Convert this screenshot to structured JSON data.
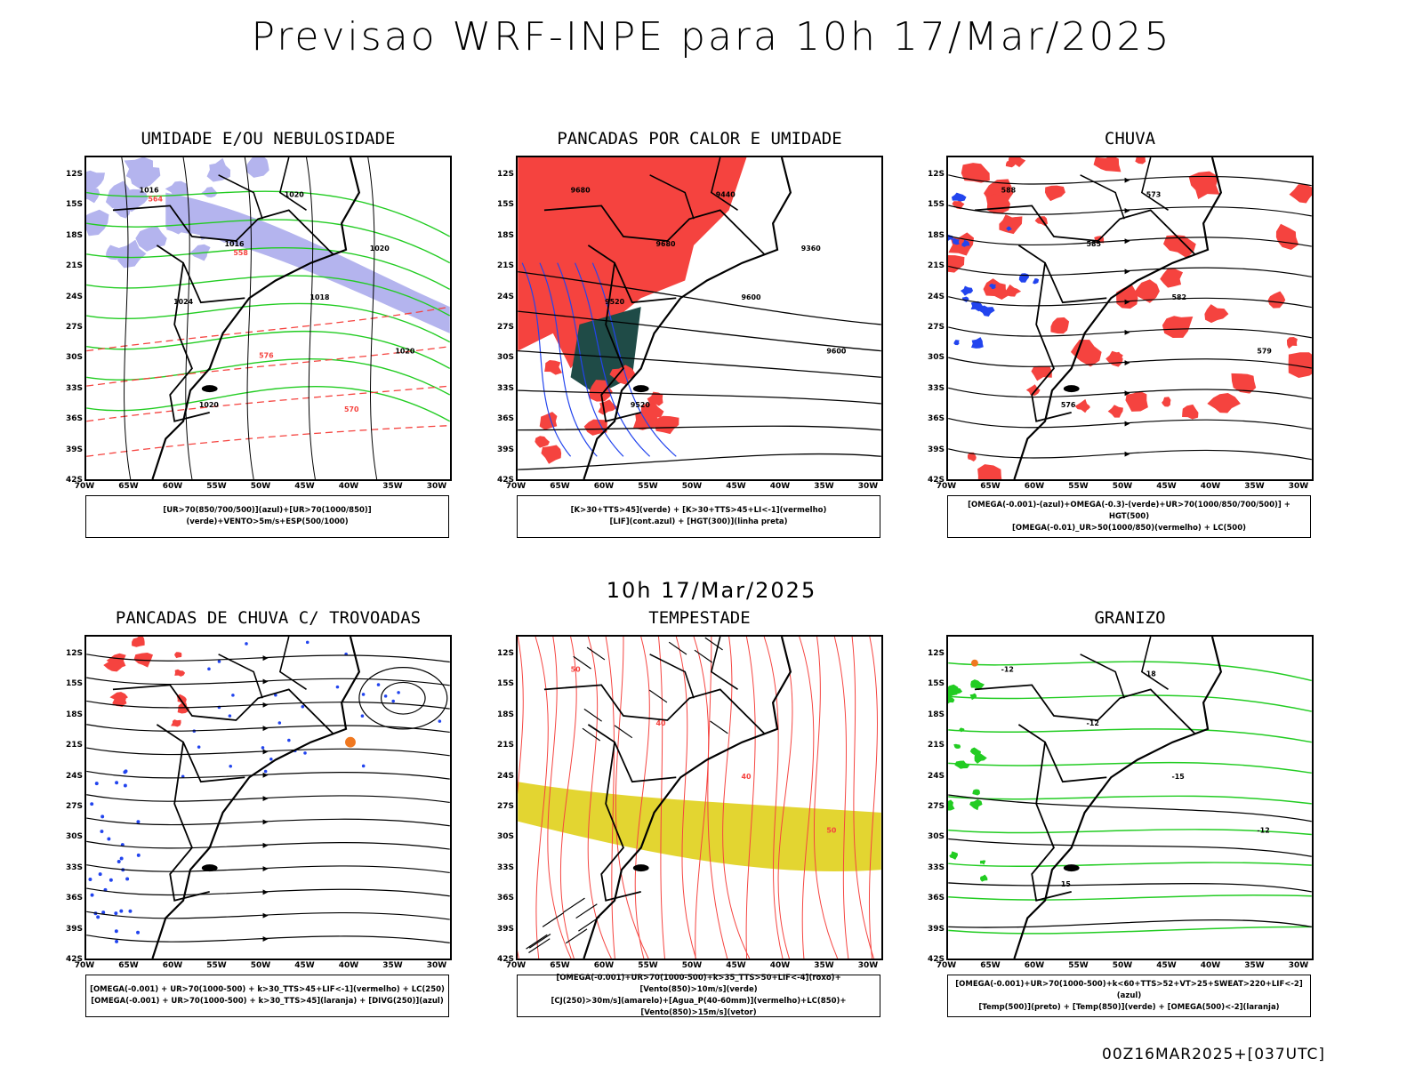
{
  "title": "Previsao WRF-INPE  para 10h 17/Mar/2025",
  "mid_time": "10h 17/Mar/2025",
  "footer": "00Z16MAR2025+[037UTC]",
  "lat_labels": [
    "12S",
    "15S",
    "18S",
    "21S",
    "24S",
    "27S",
    "30S",
    "33S",
    "36S",
    "39S",
    "42S"
  ],
  "lon_labels": [
    "70W",
    "65W",
    "60W",
    "55W",
    "50W",
    "45W",
    "40W",
    "35W",
    "30W"
  ],
  "colors": {
    "red": "#f5433f",
    "green": "#22cc22",
    "blue": "#2244ee",
    "lavender": "#b4b4ee",
    "darkteal": "#1f4b47",
    "yellow": "#e3d531",
    "orange": "#f07820",
    "black": "#000000"
  },
  "panels": [
    {
      "title": "UMIDADE E/OU NEBULOSIDADE",
      "legend": [
        "[UR>70(850/700/500)](azul)+[UR>70(1000/850)](verde)+VENTO>5m/s+ESP(500/1000)"
      ],
      "contour_labels": [
        "1016",
        "1016",
        "1018",
        "1020",
        "1020",
        "1020",
        "1020",
        "1024",
        "576",
        "570",
        "564",
        "558"
      ]
    },
    {
      "title": "PANCADAS POR CALOR E UMIDADE",
      "legend": [
        "[K>30+TTS>45](verde) + [K>30+TTS>45+LI<-1](vermelho)",
        "[LIF](cont.azul) + [HGT(300)](linha preta)"
      ],
      "contour_labels": [
        "9680",
        "9680",
        "9600",
        "9600",
        "9520",
        "9440",
        "9360",
        "9520"
      ]
    },
    {
      "title": "CHUVA",
      "legend": [
        "[OMEGA(-0.001)-(azul)+OMEGA(-0.3)-(verde)+UR>70(1000/850/700/500)] + HGT(500)",
        "[OMEGA(-0.01)_UR>50(1000/850)(vermelho) + LC(500)"
      ],
      "contour_labels": [
        "588",
        "585",
        "582",
        "579",
        "576",
        "573"
      ]
    },
    {
      "title": "PANCADAS DE CHUVA C/ TROVOADAS",
      "legend": [
        "[OMEGA(-0.001) + UR>70(1000-500) + k>30_TTS>45+LIF<-1](vermelho) + LC(250)",
        "[OMEGA(-0.001) + UR>70(1000-500) + k>30_TTS>45](laranja) + [DIVG(250)](azul)"
      ],
      "contour_labels": []
    },
    {
      "title": "TEMPESTADE",
      "legend": [
        "[OMEGA(-0.001)+UR>70(1000-500)+k>35_TTS>50+LIF<-4](roxo)+[Vento(850)>10m/s](verde)",
        "[CJ(250)>30m/s](amarelo)+[Agua_P(40-60mm)](vermelho)+LC(850)+[Vento(850)>15m/s](vetor)"
      ],
      "contour_labels": [
        "50",
        "40",
        "40",
        "50"
      ]
    },
    {
      "title": "GRANIZO",
      "legend": [
        "[OMEGA(-0.001)+UR>70(1000-500)+k<60+TTS>52+VT>25+SWEAT>220+LIF<-2](azul)",
        "[Temp(500)](preto) + [Temp(850)](verde) + [OMEGA(500)<-2](laranja)"
      ],
      "contour_labels": [
        "-12",
        "-12",
        "-15",
        "-12",
        "15",
        "18"
      ]
    }
  ]
}
